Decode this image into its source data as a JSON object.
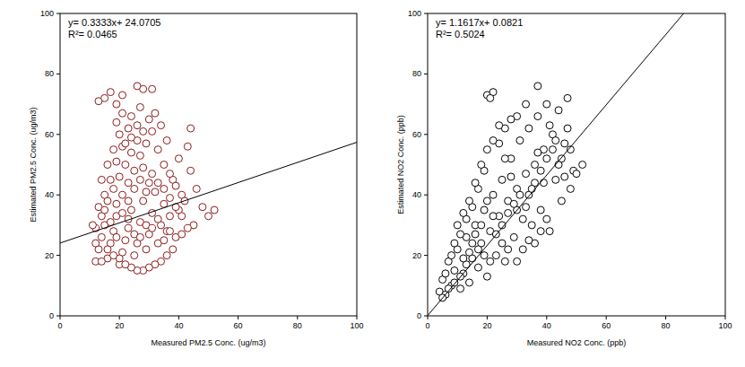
{
  "chart_data": [
    {
      "type": "scatter",
      "x_label": "Measured PM2.5 Conc. (ug/m3)",
      "y_label": "Estimated PM2.5 Conc. (ug/m3)",
      "annotations": [
        "y= 0.3333x+ 24.0705",
        "R²= 0.0465"
      ],
      "fit": {
        "slope": 0.3333,
        "intercept": 24.0705
      },
      "xlim": [
        0,
        100
      ],
      "ylim": [
        0,
        100
      ],
      "xticks": [
        0,
        20,
        40,
        60,
        80,
        100
      ],
      "yticks": [
        0,
        20,
        40,
        60,
        80,
        100
      ],
      "series": [
        {
          "color": "#8b1a1a",
          "marker": "circle",
          "x": [
            12,
            13,
            14,
            15,
            16,
            17,
            18,
            19,
            20,
            21,
            22,
            23,
            24,
            25,
            26,
            27,
            28,
            29,
            30,
            31,
            32,
            33,
            34,
            35,
            36,
            37,
            38,
            39,
            40,
            41,
            12,
            14,
            16,
            18,
            20,
            22,
            24,
            26,
            28,
            30,
            13,
            15,
            17,
            19,
            21,
            26,
            28,
            31,
            24,
            23,
            15,
            17,
            19,
            21,
            23,
            25,
            27,
            29,
            31,
            33,
            35,
            37,
            39,
            42,
            44,
            46,
            48,
            50,
            52,
            45,
            43,
            41,
            38,
            36,
            34,
            32,
            30,
            28,
            26,
            24,
            22,
            20,
            18,
            16,
            14,
            12,
            11,
            13,
            15,
            17,
            19,
            21,
            23,
            25,
            27,
            29,
            31,
            33,
            35,
            37,
            39,
            41,
            43,
            44,
            40,
            36,
            34,
            32,
            30,
            28,
            26,
            24,
            22,
            20,
            18,
            16,
            14,
            19,
            21,
            27,
            25,
            27,
            29,
            31,
            33,
            35,
            37,
            23,
            21,
            19
          ],
          "values": [
            18,
            22,
            26,
            30,
            19,
            24,
            28,
            33,
            17,
            21,
            25,
            29,
            35,
            20,
            24,
            31,
            38,
            22,
            27,
            34,
            41,
            24,
            30,
            37,
            28,
            33,
            45,
            26,
            35,
            40,
            29,
            33,
            38,
            42,
            46,
            50,
            54,
            58,
            49,
            44,
            71,
            72,
            74,
            70,
            73,
            76,
            75,
            75,
            66,
            62,
            40,
            45,
            51,
            56,
            44,
            48,
            53,
            57,
            61,
            55,
            50,
            47,
            43,
            38,
            48,
            42,
            36,
            33,
            35,
            30,
            29,
            27,
            22,
            20,
            18,
            17,
            16,
            15,
            15,
            16,
            17,
            19,
            20,
            22,
            18,
            24,
            30,
            36,
            35,
            31,
            37,
            40,
            38,
            42,
            45,
            41,
            47,
            44,
            42,
            39,
            36,
            33,
            56,
            62,
            52,
            58,
            63,
            67,
            65,
            61,
            63,
            59,
            57,
            60,
            55,
            50,
            45,
            64,
            67,
            69,
            27,
            26,
            30,
            29,
            32,
            25,
            28,
            32,
            34,
            26
          ]
        }
      ]
    },
    {
      "type": "scatter",
      "x_label": "Measured NO2 Conc. (ppb)",
      "y_label": "Estimated NO2 Conc. (ppb)",
      "annotations": [
        "y= 1.1617x+ 0.0821",
        "R²= 0.5024"
      ],
      "fit": {
        "slope": 1.1617,
        "intercept": 0.0821
      },
      "xlim": [
        0,
        100
      ],
      "ylim": [
        0,
        100
      ],
      "xticks": [
        0,
        20,
        40,
        60,
        80,
        100
      ],
      "yticks": [
        0,
        20,
        40,
        60,
        80,
        100
      ],
      "series": [
        {
          "color": "#000000",
          "marker": "circle",
          "x": [
            4,
            5,
            6,
            7,
            8,
            9,
            10,
            11,
            12,
            13,
            14,
            15,
            16,
            17,
            18,
            19,
            20,
            21,
            22,
            23,
            24,
            25,
            26,
            27,
            28,
            29,
            30,
            31,
            32,
            33,
            34,
            35,
            36,
            37,
            38,
            39,
            40,
            41,
            42,
            43,
            44,
            45,
            46,
            47,
            48,
            49,
            50,
            52,
            20,
            22,
            21,
            37,
            30,
            33,
            26,
            28,
            24,
            19,
            17,
            15,
            13,
            11,
            9,
            8,
            10,
            12,
            14,
            16,
            18,
            20,
            22,
            24,
            26,
            28,
            30,
            32,
            34,
            36,
            38,
            40,
            42,
            44,
            46,
            48,
            36,
            38,
            40,
            27,
            25,
            23,
            21,
            19,
            17,
            15,
            13,
            11,
            9,
            7,
            6,
            5,
            25,
            27,
            29,
            31,
            33,
            35,
            37,
            39,
            41,
            43,
            45,
            47,
            30,
            34,
            20,
            22,
            18,
            16,
            14,
            12
          ],
          "values": [
            8,
            12,
            7,
            18,
            10,
            15,
            22,
            9,
            14,
            26,
            11,
            19,
            30,
            16,
            24,
            35,
            13,
            28,
            40,
            20,
            33,
            45,
            18,
            38,
            52,
            26,
            42,
            58,
            22,
            47,
            62,
            30,
            50,
            66,
            35,
            55,
            70,
            28,
            60,
            45,
            68,
            38,
            57,
            72,
            42,
            48,
            47,
            50,
            73,
            74,
            72,
            76,
            66,
            70,
            62,
            65,
            57,
            48,
            42,
            36,
            32,
            27,
            24,
            20,
            30,
            34,
            38,
            44,
            50,
            55,
            58,
            63,
            52,
            46,
            35,
            32,
            40,
            44,
            48,
            52,
            55,
            50,
            46,
            55,
            24,
            28,
            32,
            22,
            24,
            27,
            18,
            20,
            22,
            24,
            17,
            13,
            11,
            9,
            14,
            6,
            30,
            34,
            37,
            40,
            36,
            42,
            54,
            44,
            63,
            58,
            52,
            62,
            18,
            25,
            38,
            33,
            30,
            27,
            21,
            19
          ]
        }
      ]
    }
  ]
}
